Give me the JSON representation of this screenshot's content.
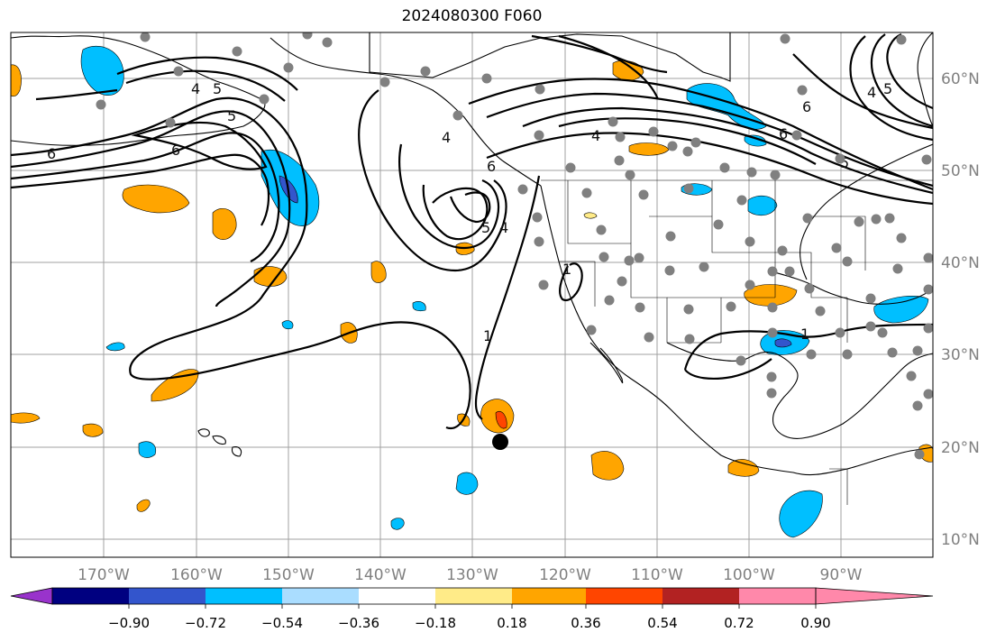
{
  "title": "2024080300 F060",
  "longitude_labels": [
    "170°W",
    "160°W",
    "150°W",
    "140°W",
    "130°W",
    "120°W",
    "110°W",
    "100°W",
    "90°W"
  ],
  "latitude_labels": [
    "60°N",
    "50°N",
    "40°N",
    "30°N",
    "20°N",
    "10°N"
  ],
  "colorbar": {
    "tick_labels": [
      "−0.90",
      "−0.72",
      "−0.54",
      "−0.36",
      "−0.18",
      "0.18",
      "0.36",
      "0.54",
      "0.72",
      "0.90"
    ],
    "colors": [
      "#9933cc",
      "#000080",
      "#3355cc",
      "#00bfff",
      "#aaddff",
      "#ffffff",
      "#ffeb88",
      "#ffa500",
      "#ff4500",
      "#b22222",
      "#ff88aa"
    ]
  },
  "contour_labels": [
    "4",
    "5",
    "6",
    "6",
    "5",
    "4",
    "6",
    "5",
    "4",
    "5",
    "6",
    "4",
    "4",
    "1",
    "1",
    "1",
    "6",
    "5"
  ],
  "colors": {
    "land_outline": "#000000",
    "grid": "#a0a0a0",
    "station_dot": "#808080",
    "marker": "#000000"
  }
}
